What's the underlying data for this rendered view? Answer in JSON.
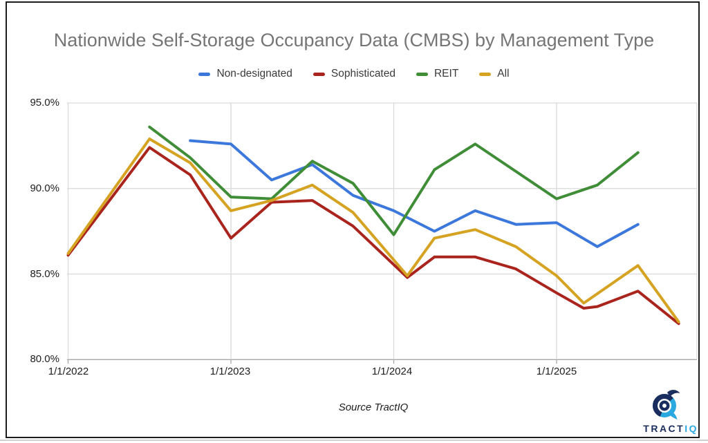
{
  "title": "Nationwide Self-Storage Occupancy Data (CMBS) by Management Type",
  "source_note": "Source TractIQ",
  "logo": {
    "text_primary": "TRACT",
    "text_accent": "IQ"
  },
  "colors": {
    "title_text": "#757575",
    "grid_line": "#d9d9d9",
    "axis_line": "#a6a6a6",
    "frame_border": "#1c1c1c",
    "logo_navy": "#1b2d5e",
    "logo_cyan": "#2aa9e0"
  },
  "chart_data": {
    "type": "line",
    "title": "Nationwide Self-Storage Occupancy Data (CMBS) by Management Type",
    "legend_position": "top",
    "grid": true,
    "y_axis": {
      "min": 80,
      "max": 95,
      "format": "percent",
      "tick_values": [
        95,
        90,
        85,
        80
      ],
      "tick_labels": [
        "95.0%",
        "90.0%",
        "85.0%",
        "80.0%"
      ]
    },
    "x_axis": {
      "tick_labels": [
        "1/1/2022",
        "1/1/2023",
        "1/1/2024",
        "1/1/2025"
      ]
    },
    "series": [
      {
        "name": "Non-designated",
        "color": "#3c78dc",
        "points": [
          [
            "10/1/2022",
            92.8
          ],
          [
            "1/1/2023",
            92.6
          ],
          [
            "4/1/2023",
            90.5
          ],
          [
            "7/1/2023",
            91.4
          ],
          [
            "10/1/2023",
            89.6
          ],
          [
            "1/1/2024",
            88.7
          ],
          [
            "4/1/2024",
            87.5
          ],
          [
            "7/1/2024",
            88.7
          ],
          [
            "10/1/2024",
            87.9
          ],
          [
            "1/1/2025",
            88.0
          ],
          [
            "4/1/2025",
            86.6
          ],
          [
            "7/1/2025",
            87.9
          ]
        ]
      },
      {
        "name": "Sophisticated",
        "color": "#aa241e",
        "points": [
          [
            "1/1/2022",
            86.1
          ],
          [
            "7/1/2022",
            92.4
          ],
          [
            "10/1/2022",
            90.8
          ],
          [
            "1/1/2023",
            87.1
          ],
          [
            "4/1/2023",
            89.2
          ],
          [
            "7/1/2023",
            89.3
          ],
          [
            "10/1/2023",
            87.8
          ],
          [
            "2/1/2024",
            84.8
          ],
          [
            "4/1/2024",
            86.0
          ],
          [
            "7/1/2024",
            86.0
          ],
          [
            "10/1/2024",
            85.3
          ],
          [
            "1/1/2025",
            83.9
          ],
          [
            "3/1/2025",
            83.0
          ],
          [
            "4/1/2025",
            83.1
          ],
          [
            "7/1/2025",
            84.0
          ],
          [
            "10/1/2025",
            82.1
          ]
        ]
      },
      {
        "name": "REIT",
        "color": "#3f8d36",
        "points": [
          [
            "7/1/2022",
            93.6
          ],
          [
            "10/1/2022",
            91.8
          ],
          [
            "1/1/2023",
            89.5
          ],
          [
            "4/1/2023",
            89.4
          ],
          [
            "7/1/2023",
            91.6
          ],
          [
            "10/1/2023",
            90.3
          ],
          [
            "1/1/2024",
            87.3
          ],
          [
            "4/1/2024",
            91.1
          ],
          [
            "7/1/2024",
            92.6
          ],
          [
            "10/1/2024",
            91.0
          ],
          [
            "1/1/2025",
            89.4
          ],
          [
            "4/1/2025",
            90.2
          ],
          [
            "7/1/2025",
            92.1
          ]
        ]
      },
      {
        "name": "All",
        "color": "#d5a321",
        "points": [
          [
            "1/1/2022",
            86.2
          ],
          [
            "7/1/2022",
            92.9
          ],
          [
            "10/1/2022",
            91.5
          ],
          [
            "1/1/2023",
            88.7
          ],
          [
            "4/1/2023",
            89.3
          ],
          [
            "7/1/2023",
            90.2
          ],
          [
            "10/1/2023",
            88.6
          ],
          [
            "2/1/2024",
            84.9
          ],
          [
            "4/1/2024",
            87.1
          ],
          [
            "7/1/2024",
            87.6
          ],
          [
            "10/1/2024",
            86.6
          ],
          [
            "1/1/2025",
            84.9
          ],
          [
            "3/1/2025",
            83.3
          ],
          [
            "7/1/2025",
            85.5
          ],
          [
            "10/1/2025",
            82.2
          ]
        ]
      }
    ]
  }
}
